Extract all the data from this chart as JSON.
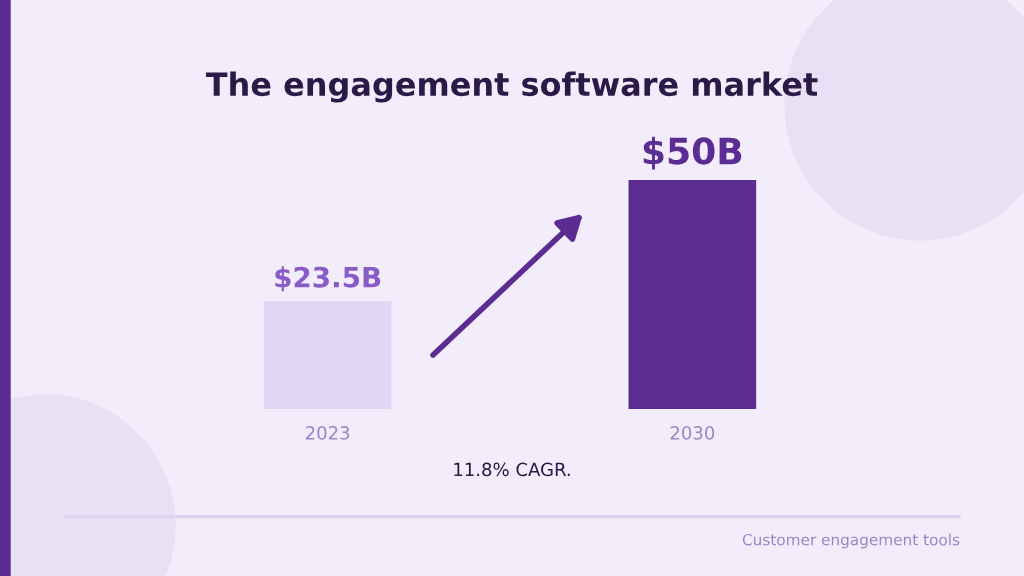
{
  "chart_data": {
    "type": "bar",
    "title": "The engagement software market",
    "categories": [
      "2023",
      "2030"
    ],
    "values": [
      23.5,
      50
    ],
    "colors": [
      "#e2d6f5",
      "#5b2c91"
    ],
    "value_labels": [
      "$23.5B",
      "$50B"
    ],
    "annotations": [
      "11.8% CAGR.",
      "Customer engagement tools"
    ]
  }
}
